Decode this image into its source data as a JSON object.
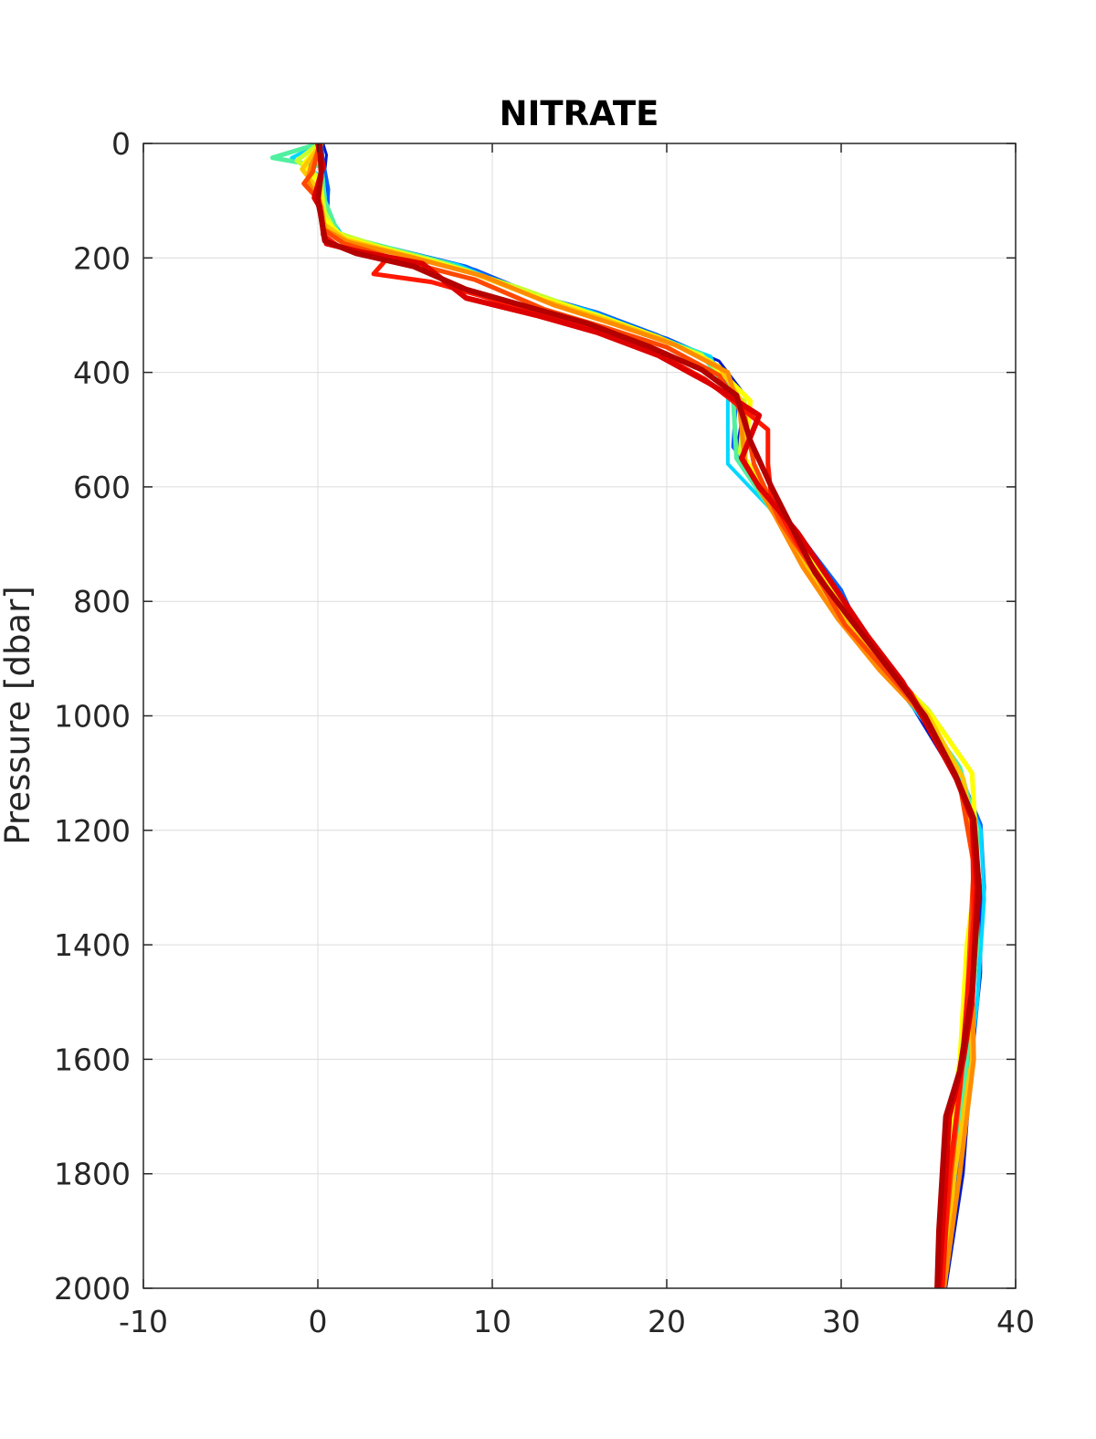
{
  "chart_data": {
    "type": "line",
    "title": "NITRATE",
    "xlabel": "",
    "ylabel": "Pressure [dbar]",
    "xlim": [
      -10,
      40
    ],
    "ylim": [
      0,
      2000
    ],
    "y_reversed": true,
    "grid": true,
    "x_ticks": [
      -10,
      0,
      10,
      20,
      30,
      40
    ],
    "y_ticks": [
      0,
      200,
      400,
      600,
      800,
      1000,
      1200,
      1400,
      1600,
      1800,
      2000
    ],
    "x_tick_labels": [
      "-10",
      "0",
      "10",
      "20",
      "30",
      "40"
    ],
    "y_tick_labels": [
      "0",
      "200",
      "400",
      "600",
      "800",
      "1000",
      "1200",
      "1400",
      "1600",
      "1800",
      "2000"
    ],
    "colors": {
      "axis": "#262626",
      "grid": "#dcdcdc"
    },
    "series": [
      {
        "color": "#0018c8",
        "width": 3,
        "values": [
          [
            0.3,
            0
          ],
          [
            0.5,
            20
          ],
          [
            0.4,
            50
          ],
          [
            0.6,
            100
          ],
          [
            0.5,
            150
          ],
          [
            2,
            175
          ],
          [
            5,
            190
          ],
          [
            9,
            220
          ],
          [
            13,
            270
          ],
          [
            16,
            300
          ],
          [
            20,
            340
          ],
          [
            23,
            380
          ],
          [
            24.5,
            440
          ],
          [
            24,
            540
          ],
          [
            26,
            620
          ],
          [
            28,
            700
          ],
          [
            30,
            780
          ],
          [
            31.5,
            880
          ],
          [
            34,
            980
          ],
          [
            36,
            1080
          ],
          [
            37.5,
            1160
          ],
          [
            38,
            1300
          ],
          [
            38,
            1450
          ],
          [
            37.5,
            1600
          ],
          [
            37,
            1800
          ],
          [
            36,
            2000
          ]
        ]
      },
      {
        "color": "#0060ff",
        "width": 4,
        "values": [
          [
            0.2,
            0
          ],
          [
            0.3,
            30
          ],
          [
            0.6,
            80
          ],
          [
            0.5,
            140
          ],
          [
            1.8,
            170
          ],
          [
            4.5,
            185
          ],
          [
            8.5,
            215
          ],
          [
            12.5,
            265
          ],
          [
            16,
            295
          ],
          [
            19.5,
            335
          ],
          [
            22.5,
            375
          ],
          [
            24,
            440
          ],
          [
            23.8,
            530
          ],
          [
            25.8,
            610
          ],
          [
            28,
            700
          ],
          [
            30,
            780
          ],
          [
            31.5,
            880
          ],
          [
            34,
            980
          ],
          [
            36.5,
            1080
          ],
          [
            38,
            1190
          ],
          [
            38.2,
            1300
          ],
          [
            37.8,
            1500
          ],
          [
            37,
            1700
          ],
          [
            35.8,
            2000
          ]
        ]
      },
      {
        "color": "#00d8ff",
        "width": 4,
        "values": [
          [
            0.2,
            0
          ],
          [
            -1.5,
            25
          ],
          [
            0.3,
            60
          ],
          [
            0.5,
            120
          ],
          [
            1.5,
            165
          ],
          [
            4,
            185
          ],
          [
            8,
            212
          ],
          [
            12,
            262
          ],
          [
            15.5,
            292
          ],
          [
            19,
            332
          ],
          [
            22.5,
            372
          ],
          [
            23.5,
            440
          ],
          [
            23.5,
            560
          ],
          [
            26,
            640
          ],
          [
            28,
            710
          ],
          [
            29.5,
            790
          ],
          [
            31.5,
            880
          ],
          [
            34,
            980
          ],
          [
            36.5,
            1080
          ],
          [
            38,
            1200
          ],
          [
            38.2,
            1320
          ],
          [
            37.8,
            1500
          ],
          [
            37.2,
            1650
          ],
          [
            36.5,
            1800
          ],
          [
            35.7,
            2000
          ]
        ]
      },
      {
        "color": "#50f0a0",
        "width": 5,
        "values": [
          [
            0.1,
            0
          ],
          [
            -2.6,
            25
          ],
          [
            0.2,
            40
          ],
          [
            0.4,
            100
          ],
          [
            1.2,
            160
          ],
          [
            4,
            182
          ],
          [
            7.5,
            210
          ],
          [
            11.5,
            255
          ],
          [
            15,
            290
          ],
          [
            18.5,
            328
          ],
          [
            22,
            368
          ],
          [
            23.8,
            440
          ],
          [
            24,
            550
          ],
          [
            26,
            640
          ],
          [
            28,
            720
          ],
          [
            30,
            800
          ],
          [
            32,
            890
          ],
          [
            34.5,
            990
          ],
          [
            36.8,
            1090
          ],
          [
            37.8,
            1200
          ],
          [
            37.8,
            1400
          ],
          [
            37.2,
            1600
          ],
          [
            36.5,
            1800
          ],
          [
            35.6,
            2000
          ]
        ]
      },
      {
        "color": "#c8ff30",
        "width": 5,
        "values": [
          [
            0.1,
            0
          ],
          [
            -1.2,
            30
          ],
          [
            0.1,
            60
          ],
          [
            0.4,
            120
          ],
          [
            1,
            155
          ],
          [
            3.5,
            180
          ],
          [
            7,
            208
          ],
          [
            11.5,
            252
          ],
          [
            15,
            290
          ],
          [
            18.5,
            330
          ],
          [
            22,
            370
          ],
          [
            24.5,
            440
          ],
          [
            24.2,
            540
          ],
          [
            26,
            630
          ],
          [
            28,
            710
          ],
          [
            30,
            800
          ],
          [
            32,
            900
          ],
          [
            35,
            990
          ],
          [
            37.5,
            1100
          ],
          [
            37.8,
            1250
          ],
          [
            37.5,
            1400
          ],
          [
            37,
            1600
          ],
          [
            36.2,
            1800
          ],
          [
            35.5,
            2000
          ]
        ]
      },
      {
        "color": "#ffff00",
        "width": 5,
        "values": [
          [
            0.2,
            0
          ],
          [
            -0.8,
            35
          ],
          [
            0.1,
            70
          ],
          [
            0.3,
            130
          ],
          [
            1.5,
            165
          ],
          [
            4.5,
            190
          ],
          [
            8.5,
            222
          ],
          [
            12.5,
            268
          ],
          [
            16,
            300
          ],
          [
            19.5,
            338
          ],
          [
            22.5,
            380
          ],
          [
            24.8,
            450
          ],
          [
            24.5,
            550
          ],
          [
            26.2,
            640
          ],
          [
            28.2,
            720
          ],
          [
            30.2,
            810
          ],
          [
            32.2,
            900
          ],
          [
            35.2,
            1000
          ],
          [
            37.5,
            1100
          ],
          [
            37.8,
            1260
          ],
          [
            37.2,
            1400
          ],
          [
            36.8,
            1600
          ],
          [
            36,
            1800
          ],
          [
            35.5,
            2000
          ]
        ]
      },
      {
        "color": "#ffc800",
        "width": 5,
        "values": [
          [
            0.2,
            0
          ],
          [
            -0.9,
            45
          ],
          [
            0,
            80
          ],
          [
            0.3,
            140
          ],
          [
            1.6,
            168
          ],
          [
            5,
            195
          ],
          [
            9,
            228
          ],
          [
            13,
            275
          ],
          [
            16.5,
            308
          ],
          [
            20,
            345
          ],
          [
            23,
            390
          ],
          [
            24.5,
            460
          ],
          [
            24.5,
            560
          ],
          [
            26.5,
            660
          ],
          [
            28,
            740
          ],
          [
            30,
            820
          ],
          [
            32.5,
            910
          ],
          [
            35,
            1000
          ],
          [
            37,
            1110
          ],
          [
            37.8,
            1250
          ],
          [
            37.5,
            1450
          ],
          [
            37.5,
            1600
          ],
          [
            36.5,
            1800
          ],
          [
            35.8,
            2000
          ]
        ]
      },
      {
        "color": "#ff8c00",
        "width": 5,
        "values": [
          [
            0.2,
            0
          ],
          [
            -0.4,
            40
          ],
          [
            -0.6,
            65
          ],
          [
            0.2,
            110
          ],
          [
            0.4,
            150
          ],
          [
            1.7,
            172
          ],
          [
            5.5,
            200
          ],
          [
            9.5,
            232
          ],
          [
            13.5,
            282
          ],
          [
            17,
            316
          ],
          [
            20.5,
            352
          ],
          [
            23.5,
            400
          ],
          [
            24.2,
            470
          ],
          [
            24.5,
            560
          ],
          [
            26.2,
            650
          ],
          [
            27.8,
            740
          ],
          [
            29.8,
            830
          ],
          [
            32.2,
            920
          ],
          [
            34.7,
            1000
          ],
          [
            36.8,
            1120
          ],
          [
            37.6,
            1250
          ],
          [
            37.5,
            1450
          ],
          [
            37.6,
            1600
          ],
          [
            36.8,
            1800
          ],
          [
            35.9,
            2000
          ]
        ]
      },
      {
        "color": "#ff4800",
        "width": 5,
        "values": [
          [
            0.1,
            0
          ],
          [
            -0.3,
            50
          ],
          [
            -0.8,
            70
          ],
          [
            0.1,
            100
          ],
          [
            0.3,
            150
          ],
          [
            1.5,
            175
          ],
          [
            4.8,
            205
          ],
          [
            9,
            238
          ],
          [
            13,
            290
          ],
          [
            16.5,
            322
          ],
          [
            20,
            356
          ],
          [
            23,
            405
          ],
          [
            24.5,
            480
          ],
          [
            25,
            560
          ],
          [
            26.5,
            660
          ],
          [
            28.5,
            750
          ],
          [
            30.2,
            840
          ],
          [
            32.5,
            920
          ],
          [
            34.8,
            1000
          ],
          [
            36.8,
            1120
          ],
          [
            37.6,
            1260
          ],
          [
            37.3,
            1450
          ],
          [
            37,
            1600
          ],
          [
            36.3,
            1800
          ],
          [
            35.7,
            2000
          ]
        ]
      },
      {
        "color": "#ff1800",
        "width": 5,
        "values": [
          [
            0.1,
            0
          ],
          [
            0.2,
            60
          ],
          [
            -0.2,
            90
          ],
          [
            0.2,
            120
          ],
          [
            0.3,
            160
          ],
          [
            1.2,
            180
          ],
          [
            4,
            200
          ],
          [
            3.2,
            228
          ],
          [
            6.5,
            242
          ],
          [
            9.2,
            265
          ],
          [
            12.5,
            295
          ],
          [
            15.8,
            325
          ],
          [
            19.2,
            362
          ],
          [
            22.2,
            412
          ],
          [
            24,
            455
          ],
          [
            25.8,
            500
          ],
          [
            25.8,
            560
          ],
          [
            26,
            620
          ],
          [
            27.5,
            700
          ],
          [
            29.5,
            790
          ],
          [
            31.5,
            870
          ],
          [
            34,
            960
          ],
          [
            36,
            1070
          ],
          [
            37.5,
            1170
          ],
          [
            37.6,
            1350
          ],
          [
            37.2,
            1500
          ],
          [
            36.8,
            1650
          ],
          [
            36.2,
            1800
          ],
          [
            35.8,
            2000
          ]
        ]
      },
      {
        "color": "#dc0000",
        "width": 6,
        "values": [
          [
            0,
            0
          ],
          [
            0.3,
            40
          ],
          [
            -0.2,
            95
          ],
          [
            0.1,
            110
          ],
          [
            0.3,
            150
          ],
          [
            0.5,
            175
          ],
          [
            2.5,
            190
          ],
          [
            6,
            210
          ],
          [
            8.5,
            270
          ],
          [
            12.5,
            300
          ],
          [
            16,
            330
          ],
          [
            19.5,
            370
          ],
          [
            22.5,
            420
          ],
          [
            25.3,
            475
          ],
          [
            24.3,
            550
          ],
          [
            25.3,
            600
          ],
          [
            27.5,
            680
          ],
          [
            29.5,
            770
          ],
          [
            31.5,
            860
          ],
          [
            33.5,
            940
          ],
          [
            35,
            1020
          ],
          [
            36.6,
            1110
          ],
          [
            37.5,
            1180
          ],
          [
            37.8,
            1300
          ],
          [
            37.5,
            1500
          ],
          [
            37,
            1600
          ],
          [
            36.2,
            1700
          ],
          [
            35.8,
            1900
          ],
          [
            35.6,
            2000
          ]
        ]
      },
      {
        "color": "#b40000",
        "width": 6,
        "values": [
          [
            0.1,
            0
          ],
          [
            0.2,
            50
          ],
          [
            0,
            100
          ],
          [
            0.2,
            130
          ],
          [
            0.4,
            170
          ],
          [
            2.2,
            192
          ],
          [
            5.5,
            215
          ],
          [
            8.5,
            255
          ],
          [
            12,
            285
          ],
          [
            15.5,
            315
          ],
          [
            19,
            355
          ],
          [
            22,
            395
          ],
          [
            24,
            440
          ],
          [
            24.8,
            520
          ],
          [
            26,
            600
          ],
          [
            27,
            660
          ],
          [
            28.5,
            750
          ],
          [
            30.5,
            830
          ],
          [
            32.8,
            920
          ],
          [
            34.8,
            1000
          ],
          [
            36.5,
            1100
          ],
          [
            37.6,
            1180
          ],
          [
            37.9,
            1300
          ],
          [
            37.5,
            1480
          ],
          [
            36.8,
            1620
          ],
          [
            36,
            1700
          ],
          [
            35.6,
            1900
          ],
          [
            35.5,
            2000
          ]
        ]
      }
    ]
  }
}
